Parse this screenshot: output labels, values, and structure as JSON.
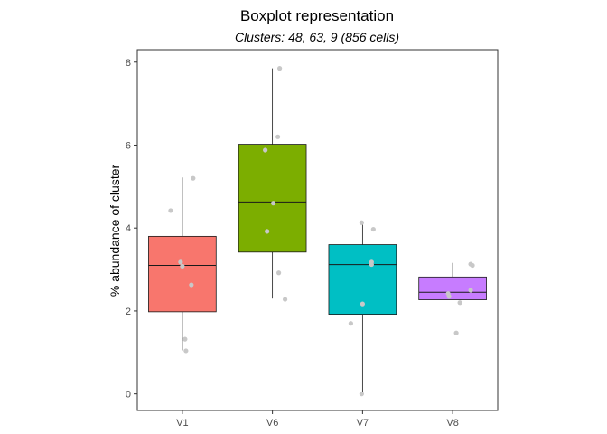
{
  "chart_data": {
    "type": "boxplot",
    "title": "Boxplot representation",
    "subtitle": "Clusters: 48, 63, 9 (856 cells)",
    "xlabel": "",
    "ylabel": "% abundance of cluster",
    "ylim": [
      -0.4,
      8.3
    ],
    "yticks": [
      0,
      2,
      4,
      6,
      8
    ],
    "grid": false,
    "legend": "none",
    "categories": [
      "V1",
      "V6",
      "V7",
      "V8"
    ],
    "boxes": [
      {
        "category": "V1",
        "color": "#F8766D",
        "whisker_low": 1.05,
        "q1": 1.98,
        "median": 3.1,
        "q3": 3.8,
        "whisker_high": 5.22,
        "points": [
          [
            0.12,
            5.2
          ],
          [
            -0.13,
            4.42
          ],
          [
            -0.02,
            3.18
          ],
          [
            0.0,
            3.08
          ],
          [
            0.1,
            2.63
          ],
          [
            0.03,
            1.32
          ],
          [
            0.04,
            1.04
          ]
        ]
      },
      {
        "category": "V6",
        "color": "#7CAE00",
        "whisker_low": 2.3,
        "q1": 3.42,
        "median": 4.63,
        "q3": 6.02,
        "whisker_high": 7.85,
        "points": [
          [
            0.08,
            7.85
          ],
          [
            0.06,
            6.2
          ],
          [
            -0.08,
            5.88
          ],
          [
            0.01,
            4.6
          ],
          [
            -0.06,
            3.92
          ],
          [
            0.07,
            2.92
          ],
          [
            0.14,
            2.28
          ]
        ]
      },
      {
        "category": "V7",
        "color": "#00BFC4",
        "whisker_low": 0.0,
        "q1": 1.92,
        "median": 3.12,
        "q3": 3.6,
        "whisker_high": 4.13,
        "points": [
          [
            -0.01,
            4.13
          ],
          [
            0.12,
            3.97
          ],
          [
            0.1,
            3.18
          ],
          [
            0.1,
            3.12
          ],
          [
            0.0,
            2.17
          ],
          [
            -0.13,
            1.7
          ],
          [
            -0.01,
            0.0
          ]
        ]
      },
      {
        "category": "V8",
        "color": "#C77CFF",
        "whisker_low": 2.27,
        "q1": 2.27,
        "median": 2.45,
        "q3": 2.82,
        "whisker_high": 3.16,
        "points": [
          [
            0.2,
            3.13
          ],
          [
            0.22,
            3.1
          ],
          [
            0.2,
            2.5
          ],
          [
            -0.05,
            2.42
          ],
          [
            -0.04,
            2.35
          ],
          [
            0.08,
            2.2
          ],
          [
            0.04,
            1.47
          ]
        ]
      }
    ]
  }
}
